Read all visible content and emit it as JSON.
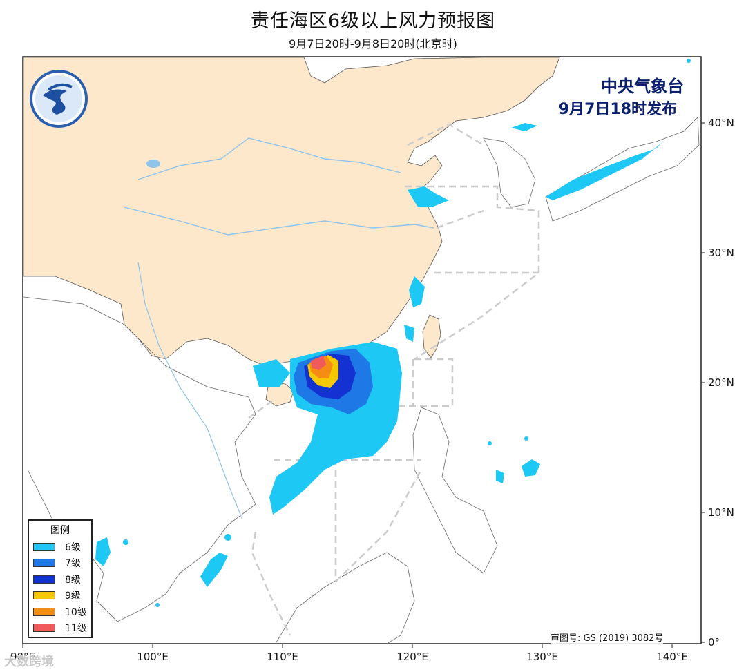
{
  "header": {
    "title": "责任海区6级以上风力预报图",
    "subtitle": "9月7日20时-9月8日20时(北京时)"
  },
  "issuer": {
    "name": "中央气象台",
    "issued": "9月7日18时发布"
  },
  "approval_number": "审图号: GS (2019) 3082号",
  "watermark": "大数跨境",
  "axes": {
    "x_ticks": [
      "90°E",
      "100°E",
      "110°E",
      "120°E",
      "130°E",
      "140°E"
    ],
    "y_ticks": [
      "0°",
      "10°N",
      "20°N",
      "30°N",
      "40°N"
    ]
  },
  "legend": {
    "title": "图例",
    "items": [
      {
        "label": "6级",
        "color": "#1ec8f5"
      },
      {
        "label": "7级",
        "color": "#1e78e6"
      },
      {
        "label": "8级",
        "color": "#1432d2"
      },
      {
        "label": "9级",
        "color": "#f5c800"
      },
      {
        "label": "10级",
        "color": "#f58c14"
      },
      {
        "label": "11级",
        "color": "#f05a5a"
      }
    ]
  },
  "colors": {
    "land_china": "#fde8cc",
    "ocean": "#ffffff",
    "boundary_dash": "#cccccc",
    "river": "#8ec3ea",
    "issuer_text": "#0a1f6e"
  }
}
